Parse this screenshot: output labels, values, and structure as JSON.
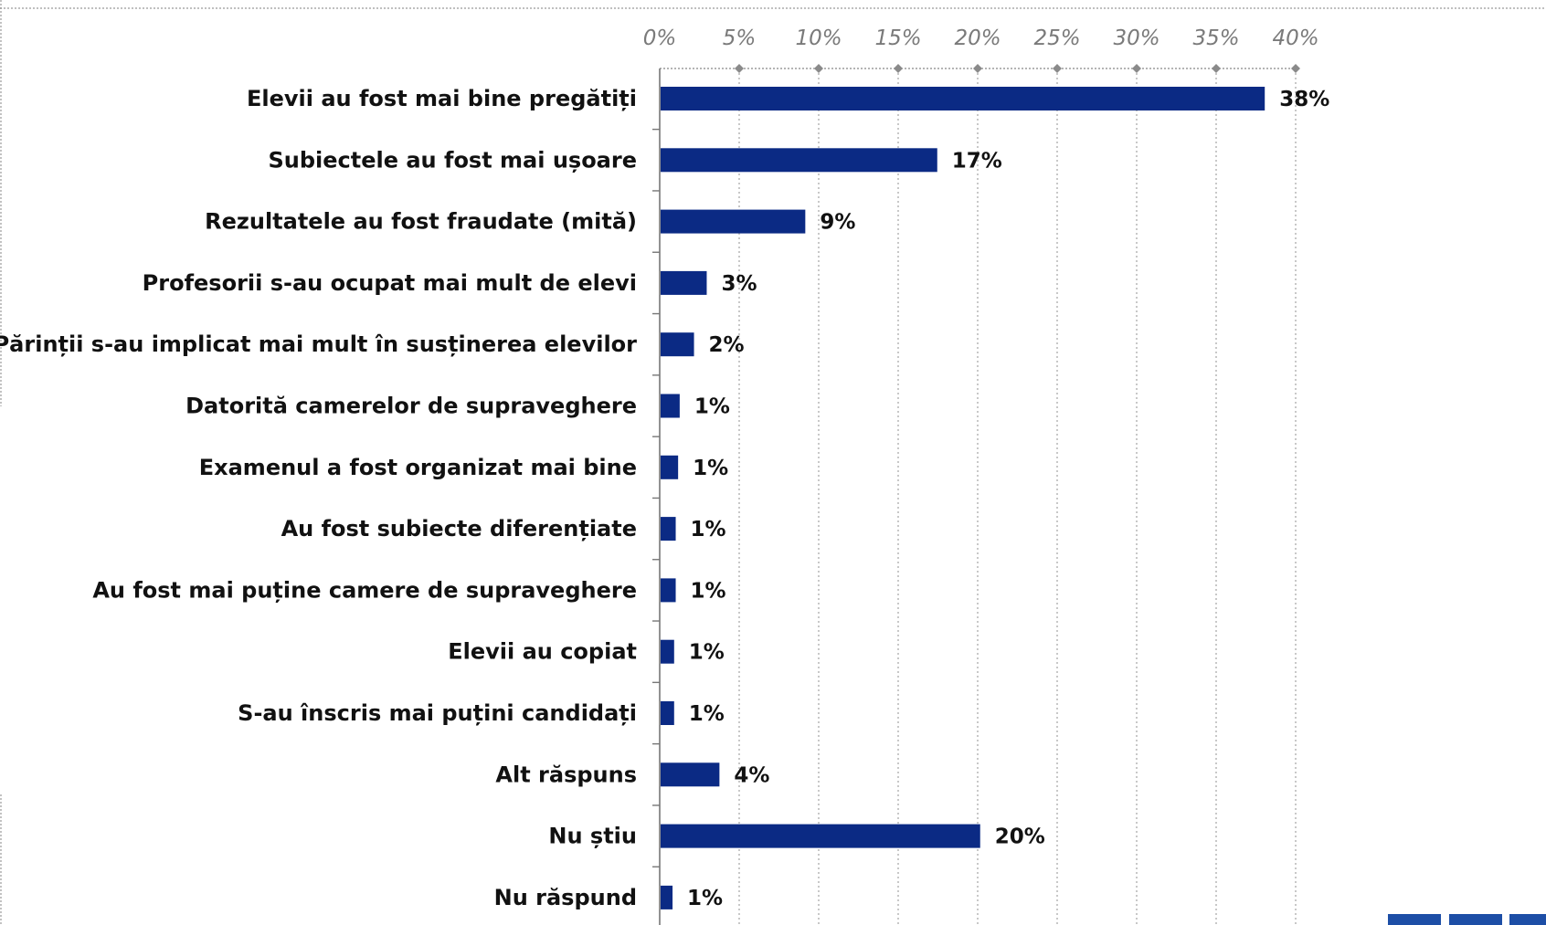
{
  "chart_data": {
    "type": "bar",
    "orientation": "horizontal",
    "categories": [
      "Elevii au fost mai bine pregătiți",
      "Subiectele au fost mai ușoare",
      "Rezultatele au fost fraudate (mită)",
      "Profesorii s-au ocupat mai mult de elevi",
      "Părinții s-au implicat mai mult în susținerea elevilor",
      "Datorită camerelor de supraveghere",
      "Examenul a fost organizat mai bine",
      "Au fost subiecte diferențiate",
      "Au fost mai puține camere de supraveghere",
      "Elevii au copiat",
      "S-au înscris mai puțini candidați",
      "Alt răspuns",
      "Nu știu",
      "Nu răspund"
    ],
    "values": [
      38,
      17.4,
      9.1,
      2.9,
      2.1,
      1.2,
      1.1,
      0.95,
      0.95,
      0.85,
      0.85,
      3.7,
      20.1,
      0.75
    ],
    "data_labels": [
      "38%",
      "17%",
      "9%",
      "3%",
      "2%",
      "1%",
      "1%",
      "1%",
      "1%",
      "1%",
      "1%",
      "4%",
      "20%",
      "1%"
    ],
    "x_ticks": [
      "0%",
      "5%",
      "10%",
      "15%",
      "20%",
      "25%",
      "30%",
      "35%",
      "40%"
    ],
    "xlim": [
      0,
      40
    ],
    "axis_position": "top",
    "grid": true,
    "bar_color": "#0b2a84",
    "grid_color": "#b0b0b0",
    "title": "",
    "xlabel": "",
    "ylabel": ""
  }
}
